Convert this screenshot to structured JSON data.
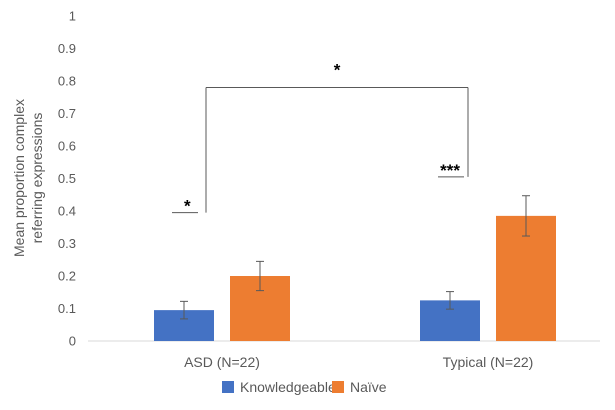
{
  "chart_data": {
    "type": "bar",
    "title": "",
    "xlabel": "",
    "ylabel": "Mean proportion complex referring expressions",
    "ylabel_lines": [
      "Mean proportion complex",
      "referring expressions"
    ],
    "ylim": [
      0,
      1
    ],
    "yticks": [
      "0",
      "0.1",
      "0.2",
      "0.3",
      "0.4",
      "0.5",
      "0.6",
      "0.7",
      "0.8",
      "0.9",
      "1"
    ],
    "grid": false,
    "legend_position": "bottom",
    "categories": [
      "ASD (N=22)",
      "Typical (N=22)"
    ],
    "series": [
      {
        "name": "Knowledgeable",
        "color": "#4472C4",
        "values": [
          0.095,
          0.125
        ],
        "error": [
          0.027,
          0.027
        ]
      },
      {
        "name": "Naïve",
        "color": "#ED7D31",
        "values": [
          0.2,
          0.385
        ],
        "error": [
          0.045,
          0.062
        ]
      }
    ],
    "annotations": [
      {
        "text": "*",
        "type": "within-group",
        "category": "ASD (N=22)",
        "level": 0.395
      },
      {
        "text": "***",
        "type": "within-group",
        "category": "Typical (N=22)",
        "level": 0.505
      },
      {
        "text": "*",
        "type": "between-group",
        "from": "ASD (N=22)",
        "to": "Typical (N=22)",
        "level": 0.78
      }
    ]
  }
}
